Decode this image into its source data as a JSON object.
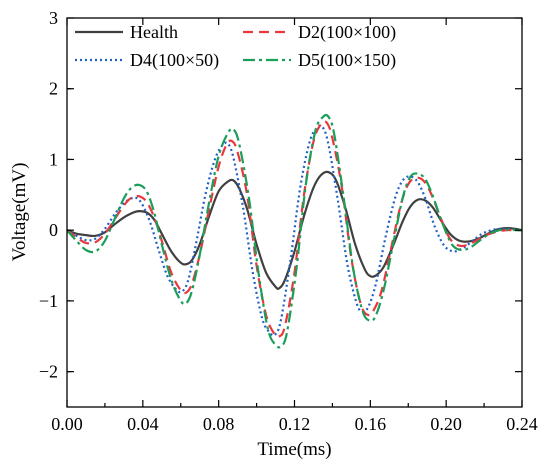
{
  "chart_data": {
    "type": "line",
    "xlabel": "Time(ms)",
    "ylabel": "Voltage(mV)",
    "xlim": [
      0,
      0.24
    ],
    "ylim": [
      -2.5,
      3
    ],
    "xticks": [
      0.0,
      0.04,
      0.08,
      0.12,
      0.16,
      0.2,
      0.24
    ],
    "xtick_labels": [
      "0.00",
      "0.04",
      "0.08",
      "0.12",
      "0.16",
      "0.20",
      "0.24"
    ],
    "yticks": [
      -2,
      -1,
      0,
      1,
      2,
      3
    ],
    "ytick_labels": [
      "−2",
      "−1",
      "0",
      "1",
      "2",
      "3"
    ],
    "grid": false,
    "legend_position": "top",
    "series": [
      {
        "name": "Health",
        "color": "#404040",
        "dash": "solid",
        "x": [
          0.0,
          0.005,
          0.01,
          0.015,
          0.02,
          0.025,
          0.03,
          0.035,
          0.038,
          0.042,
          0.046,
          0.05,
          0.055,
          0.06,
          0.063,
          0.066,
          0.07,
          0.075,
          0.08,
          0.085,
          0.088,
          0.091,
          0.095,
          0.1,
          0.105,
          0.11,
          0.112,
          0.115,
          0.12,
          0.125,
          0.13,
          0.134,
          0.138,
          0.142,
          0.147,
          0.152,
          0.157,
          0.16,
          0.163,
          0.167,
          0.172,
          0.177,
          0.181,
          0.185,
          0.189,
          0.193,
          0.197,
          0.202,
          0.207,
          0.212,
          0.217,
          0.222,
          0.227,
          0.232,
          0.236,
          0.24
        ],
        "y": [
          0.0,
          -0.05,
          -0.07,
          -0.08,
          -0.03,
          0.08,
          0.18,
          0.25,
          0.27,
          0.25,
          0.15,
          -0.05,
          -0.3,
          -0.46,
          -0.48,
          -0.42,
          -0.2,
          0.2,
          0.55,
          0.69,
          0.7,
          0.58,
          0.3,
          -0.2,
          -0.6,
          -0.8,
          -0.82,
          -0.7,
          -0.3,
          0.2,
          0.6,
          0.78,
          0.82,
          0.7,
          0.3,
          -0.2,
          -0.55,
          -0.65,
          -0.64,
          -0.52,
          -0.22,
          0.12,
          0.33,
          0.43,
          0.42,
          0.32,
          0.15,
          -0.05,
          -0.15,
          -0.16,
          -0.12,
          -0.05,
          0.01,
          0.03,
          0.02,
          0.0
        ]
      },
      {
        "name": "D2(100×100)",
        "color": "#e8383d",
        "dash": "10 6",
        "x": [
          0.0,
          0.005,
          0.01,
          0.015,
          0.02,
          0.025,
          0.03,
          0.034,
          0.038,
          0.042,
          0.046,
          0.05,
          0.055,
          0.06,
          0.063,
          0.066,
          0.07,
          0.075,
          0.08,
          0.084,
          0.087,
          0.09,
          0.095,
          0.1,
          0.105,
          0.109,
          0.112,
          0.115,
          0.12,
          0.125,
          0.13,
          0.134,
          0.137,
          0.14,
          0.145,
          0.15,
          0.155,
          0.159,
          0.162,
          0.166,
          0.171,
          0.176,
          0.18,
          0.184,
          0.188,
          0.192,
          0.197,
          0.202,
          0.207,
          0.212,
          0.217,
          0.222,
          0.227,
          0.232,
          0.236,
          0.24
        ],
        "y": [
          0.0,
          -0.1,
          -0.18,
          -0.17,
          -0.05,
          0.15,
          0.35,
          0.46,
          0.48,
          0.4,
          0.18,
          -0.15,
          -0.6,
          -0.85,
          -0.88,
          -0.75,
          -0.35,
          0.3,
          0.9,
          1.2,
          1.26,
          1.1,
          0.5,
          -0.5,
          -1.2,
          -1.45,
          -1.5,
          -1.35,
          -0.6,
          0.5,
          1.25,
          1.5,
          1.52,
          1.3,
          0.6,
          -0.4,
          -1.05,
          -1.2,
          -1.12,
          -0.85,
          -0.25,
          0.35,
          0.65,
          0.74,
          0.7,
          0.52,
          0.18,
          -0.12,
          -0.22,
          -0.2,
          -0.13,
          -0.06,
          -0.02,
          0.0,
          0.0,
          0.0
        ]
      },
      {
        "name": "D4(100×50)",
        "color": "#1f5fc8",
        "dash": "2 3",
        "x": [
          0.0,
          0.005,
          0.01,
          0.015,
          0.02,
          0.025,
          0.03,
          0.034,
          0.037,
          0.04,
          0.044,
          0.048,
          0.053,
          0.058,
          0.061,
          0.064,
          0.068,
          0.073,
          0.078,
          0.082,
          0.085,
          0.088,
          0.093,
          0.098,
          0.103,
          0.107,
          0.11,
          0.113,
          0.118,
          0.123,
          0.128,
          0.132,
          0.135,
          0.138,
          0.143,
          0.148,
          0.153,
          0.156,
          0.159,
          0.163,
          0.168,
          0.173,
          0.177,
          0.181,
          0.185,
          0.189,
          0.194,
          0.199,
          0.204,
          0.209,
          0.214,
          0.219,
          0.224,
          0.229,
          0.234,
          0.24
        ],
        "y": [
          0.0,
          -0.08,
          -0.14,
          -0.12,
          0.02,
          0.22,
          0.38,
          0.45,
          0.45,
          0.35,
          0.1,
          -0.25,
          -0.65,
          -0.85,
          -0.86,
          -0.7,
          -0.2,
          0.5,
          1.0,
          1.2,
          1.22,
          1.0,
          0.3,
          -0.6,
          -1.25,
          -1.45,
          -1.47,
          -1.25,
          -0.4,
          0.6,
          1.25,
          1.45,
          1.45,
          1.2,
          0.4,
          -0.5,
          -1.05,
          -1.15,
          -1.08,
          -0.75,
          -0.1,
          0.45,
          0.7,
          0.76,
          0.68,
          0.45,
          0.05,
          -0.22,
          -0.3,
          -0.25,
          -0.15,
          -0.05,
          0.0,
          0.02,
          0.01,
          0.0
        ]
      },
      {
        "name": "D5(100×150)",
        "color": "#1a9e5a",
        "dash": "12 4 3 4",
        "x": [
          0.0,
          0.005,
          0.01,
          0.015,
          0.02,
          0.025,
          0.03,
          0.034,
          0.038,
          0.042,
          0.046,
          0.05,
          0.055,
          0.06,
          0.063,
          0.066,
          0.07,
          0.075,
          0.08,
          0.085,
          0.088,
          0.091,
          0.096,
          0.101,
          0.106,
          0.11,
          0.113,
          0.116,
          0.121,
          0.126,
          0.131,
          0.135,
          0.138,
          0.141,
          0.146,
          0.151,
          0.156,
          0.16,
          0.163,
          0.167,
          0.172,
          0.177,
          0.181,
          0.185,
          0.189,
          0.193,
          0.198,
          0.203,
          0.208,
          0.213,
          0.218,
          0.223,
          0.228,
          0.233,
          0.237,
          0.24
        ],
        "y": [
          0.0,
          -0.15,
          -0.28,
          -0.3,
          -0.15,
          0.15,
          0.45,
          0.6,
          0.64,
          0.55,
          0.25,
          -0.2,
          -0.7,
          -1.0,
          -1.03,
          -0.85,
          -0.35,
          0.4,
          1.05,
          1.38,
          1.42,
          1.2,
          0.45,
          -0.6,
          -1.4,
          -1.62,
          -1.64,
          -1.45,
          -0.55,
          0.65,
          1.4,
          1.6,
          1.6,
          1.35,
          0.45,
          -0.55,
          -1.15,
          -1.28,
          -1.2,
          -0.85,
          -0.2,
          0.45,
          0.75,
          0.8,
          0.72,
          0.48,
          0.1,
          -0.2,
          -0.28,
          -0.24,
          -0.14,
          -0.05,
          0.0,
          0.01,
          0.0,
          0.0
        ]
      }
    ]
  }
}
